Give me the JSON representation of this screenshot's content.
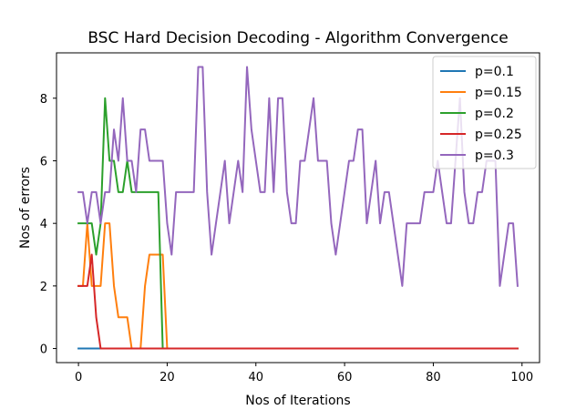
{
  "chart_data": {
    "type": "line",
    "title": "BSC Hard Decision Decoding - Algorithm Convergence",
    "xlabel": "Nos of Iterations",
    "ylabel": "Nos of errors",
    "xlim": [
      -4.95,
      103.95
    ],
    "ylim": [
      -0.45,
      9.45
    ],
    "xticks": [
      0,
      20,
      40,
      60,
      80,
      100
    ],
    "yticks": [
      0,
      2,
      4,
      6,
      8
    ],
    "grid": false,
    "legend_position": "upper right",
    "series": [
      {
        "name": "p=0.1",
        "color": "#1f77b4",
        "x": [
          0,
          1,
          2,
          3,
          4,
          5,
          6,
          7,
          8,
          9,
          10,
          11,
          12,
          13,
          14,
          15,
          16,
          17,
          18,
          19,
          20,
          21,
          22,
          23,
          24,
          25,
          26,
          27,
          28,
          29,
          30,
          31,
          32,
          33,
          34,
          35,
          36,
          37,
          38,
          39,
          40,
          41,
          42,
          43,
          44,
          45,
          46,
          47,
          48,
          49,
          50,
          51,
          52,
          53,
          54,
          55,
          56,
          57,
          58,
          59,
          60,
          61,
          62,
          63,
          64,
          65,
          66,
          67,
          68,
          69,
          70,
          71,
          72,
          73,
          74,
          75,
          76,
          77,
          78,
          79,
          80,
          81,
          82,
          83,
          84,
          85,
          86,
          87,
          88,
          89,
          90,
          91,
          92,
          93,
          94,
          95,
          96,
          97,
          98,
          99
        ],
        "y": [
          0,
          0,
          0,
          0,
          0,
          0,
          0,
          0,
          0,
          0,
          0,
          0,
          0,
          0,
          0,
          0,
          0,
          0,
          0,
          0,
          0,
          0,
          0,
          0,
          0,
          0,
          0,
          0,
          0,
          0,
          0,
          0,
          0,
          0,
          0,
          0,
          0,
          0,
          0,
          0,
          0,
          0,
          0,
          0,
          0,
          0,
          0,
          0,
          0,
          0,
          0,
          0,
          0,
          0,
          0,
          0,
          0,
          0,
          0,
          0,
          0,
          0,
          0,
          0,
          0,
          0,
          0,
          0,
          0,
          0,
          0,
          0,
          0,
          0,
          0,
          0,
          0,
          0,
          0,
          0,
          0,
          0,
          0,
          0,
          0,
          0,
          0,
          0,
          0,
          0,
          0,
          0,
          0,
          0,
          0,
          0,
          0,
          0,
          0,
          0
        ]
      },
      {
        "name": "p=0.15",
        "color": "#ff7f0e",
        "x": [
          0,
          1,
          2,
          3,
          4,
          5,
          6,
          7,
          8,
          9,
          10,
          11,
          12,
          13,
          14,
          15,
          16,
          17,
          18,
          19,
          20,
          21,
          22,
          23,
          24,
          25,
          26,
          27,
          28,
          29,
          30,
          31,
          32,
          33,
          34,
          35,
          36,
          37,
          38,
          39,
          40,
          41,
          42,
          43,
          44,
          45,
          46,
          47,
          48,
          49,
          50,
          51,
          52,
          53,
          54,
          55,
          56,
          57,
          58,
          59,
          60,
          61,
          62,
          63,
          64,
          65,
          66,
          67,
          68,
          69,
          70,
          71,
          72,
          73,
          74,
          75,
          76,
          77,
          78,
          79,
          80,
          81,
          82,
          83,
          84,
          85,
          86,
          87,
          88,
          89,
          90,
          91,
          92,
          93,
          94,
          95,
          96,
          97,
          98,
          99
        ],
        "y": [
          2,
          2,
          4,
          2,
          2,
          2,
          4,
          4,
          2,
          1,
          1,
          1,
          0,
          0,
          0,
          2,
          3,
          3,
          3,
          3,
          0,
          0,
          0,
          0,
          0,
          0,
          0,
          0,
          0,
          0,
          0,
          0,
          0,
          0,
          0,
          0,
          0,
          0,
          0,
          0,
          0,
          0,
          0,
          0,
          0,
          0,
          0,
          0,
          0,
          0,
          0,
          0,
          0,
          0,
          0,
          0,
          0,
          0,
          0,
          0,
          0,
          0,
          0,
          0,
          0,
          0,
          0,
          0,
          0,
          0,
          0,
          0,
          0,
          0,
          0,
          0,
          0,
          0,
          0,
          0,
          0,
          0,
          0,
          0,
          0,
          0,
          0,
          0,
          0,
          0,
          0,
          0,
          0,
          0,
          0,
          0,
          0,
          0,
          0,
          0
        ]
      },
      {
        "name": "p=0.2",
        "color": "#2ca02c",
        "x": [
          0,
          1,
          2,
          3,
          4,
          5,
          6,
          7,
          8,
          9,
          10,
          11,
          12,
          13,
          14,
          15,
          16,
          17,
          18,
          19,
          20,
          21,
          22,
          23,
          24,
          25,
          26,
          27,
          28,
          29,
          30,
          31,
          32,
          33,
          34,
          35,
          36,
          37,
          38,
          39,
          40,
          41,
          42,
          43,
          44,
          45,
          46,
          47,
          48,
          49,
          50,
          51,
          52,
          53,
          54,
          55,
          56,
          57,
          58,
          59,
          60,
          61,
          62,
          63,
          64,
          65,
          66,
          67,
          68,
          69,
          70,
          71,
          72,
          73,
          74,
          75,
          76,
          77,
          78,
          79,
          80,
          81,
          82,
          83,
          84,
          85,
          86,
          87,
          88,
          89,
          90,
          91,
          92,
          93,
          94,
          95,
          96,
          97,
          98,
          99
        ],
        "y": [
          4,
          4,
          4,
          4,
          3,
          4,
          8,
          6,
          6,
          5,
          5,
          6,
          5,
          5,
          5,
          5,
          5,
          5,
          5,
          0,
          0,
          0,
          0,
          0,
          0,
          0,
          0,
          0,
          0,
          0,
          0,
          0,
          0,
          0,
          0,
          0,
          0,
          0,
          0,
          0,
          0,
          0,
          0,
          0,
          0,
          0,
          0,
          0,
          0,
          0,
          0,
          0,
          0,
          0,
          0,
          0,
          0,
          0,
          0,
          0,
          0,
          0,
          0,
          0,
          0,
          0,
          0,
          0,
          0,
          0,
          0,
          0,
          0,
          0,
          0,
          0,
          0,
          0,
          0,
          0,
          0,
          0,
          0,
          0,
          0,
          0,
          0,
          0,
          0,
          0,
          0,
          0,
          0,
          0,
          0,
          0,
          0,
          0,
          0,
          0
        ]
      },
      {
        "name": "p=0.25",
        "color": "#d62728",
        "x": [
          0,
          1,
          2,
          3,
          4,
          5,
          6,
          7,
          8,
          9,
          10,
          11,
          12,
          13,
          14,
          15,
          16,
          17,
          18,
          19,
          20,
          21,
          22,
          23,
          24,
          25,
          26,
          27,
          28,
          29,
          30,
          31,
          32,
          33,
          34,
          35,
          36,
          37,
          38,
          39,
          40,
          41,
          42,
          43,
          44,
          45,
          46,
          47,
          48,
          49,
          50,
          51,
          52,
          53,
          54,
          55,
          56,
          57,
          58,
          59,
          60,
          61,
          62,
          63,
          64,
          65,
          66,
          67,
          68,
          69,
          70,
          71,
          72,
          73,
          74,
          75,
          76,
          77,
          78,
          79,
          80,
          81,
          82,
          83,
          84,
          85,
          86,
          87,
          88,
          89,
          90,
          91,
          92,
          93,
          94,
          95,
          96,
          97,
          98,
          99
        ],
        "y": [
          2,
          2,
          2,
          3,
          1,
          0,
          0,
          0,
          0,
          0,
          0,
          0,
          0,
          0,
          0,
          0,
          0,
          0,
          0,
          0,
          0,
          0,
          0,
          0,
          0,
          0,
          0,
          0,
          0,
          0,
          0,
          0,
          0,
          0,
          0,
          0,
          0,
          0,
          0,
          0,
          0,
          0,
          0,
          0,
          0,
          0,
          0,
          0,
          0,
          0,
          0,
          0,
          0,
          0,
          0,
          0,
          0,
          0,
          0,
          0,
          0,
          0,
          0,
          0,
          0,
          0,
          0,
          0,
          0,
          0,
          0,
          0,
          0,
          0,
          0,
          0,
          0,
          0,
          0,
          0,
          0,
          0,
          0,
          0,
          0,
          0,
          0,
          0,
          0,
          0,
          0,
          0,
          0,
          0,
          0,
          0,
          0,
          0,
          0,
          0
        ]
      },
      {
        "name": "p=0.3",
        "color": "#9467bd",
        "x": [
          0,
          1,
          2,
          3,
          4,
          5,
          6,
          7,
          8,
          9,
          10,
          11,
          12,
          13,
          14,
          15,
          16,
          17,
          18,
          19,
          20,
          21,
          22,
          23,
          24,
          25,
          26,
          27,
          28,
          29,
          30,
          31,
          32,
          33,
          34,
          35,
          36,
          37,
          38,
          39,
          40,
          41,
          42,
          43,
          44,
          45,
          46,
          47,
          48,
          49,
          50,
          51,
          52,
          53,
          54,
          55,
          56,
          57,
          58,
          59,
          60,
          61,
          62,
          63,
          64,
          65,
          66,
          67,
          68,
          69,
          70,
          71,
          72,
          73,
          74,
          75,
          76,
          77,
          78,
          79,
          80,
          81,
          82,
          83,
          84,
          85,
          86,
          87,
          88,
          89,
          90,
          91,
          92,
          93,
          94,
          95,
          96,
          97,
          98,
          99
        ],
        "y": [
          5,
          5,
          4,
          5,
          5,
          4,
          5,
          5,
          7,
          6,
          8,
          6,
          6,
          5,
          7,
          7,
          6,
          6,
          6,
          6,
          4,
          3,
          5,
          5,
          5,
          5,
          5,
          9,
          9,
          5,
          3,
          4,
          5,
          6,
          4,
          5,
          6,
          5,
          9,
          7,
          6,
          5,
          5,
          8,
          5,
          8,
          8,
          5,
          4,
          4,
          6,
          6,
          7,
          8,
          6,
          6,
          6,
          4,
          3,
          4,
          5,
          6,
          6,
          7,
          7,
          4,
          5,
          6,
          4,
          5,
          5,
          4,
          3,
          2,
          4,
          4,
          4,
          4,
          5,
          5,
          5,
          6,
          5,
          4,
          4,
          6,
          8,
          5,
          4,
          4,
          5,
          5,
          6,
          6,
          6,
          2,
          3,
          4,
          4,
          2
        ]
      }
    ]
  }
}
